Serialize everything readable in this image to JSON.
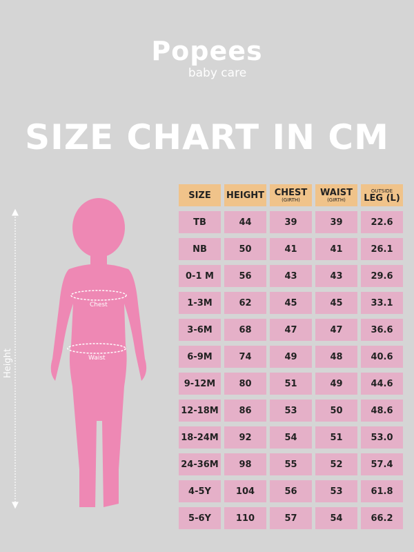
{
  "logo": {
    "brand": "Popees",
    "tagline": "baby care"
  },
  "title": "SIZE CHART IN CM",
  "figure": {
    "height_label": "Height",
    "chest_label": "Chest",
    "waist_label": "Waist"
  },
  "colors": {
    "background": "#d5d5d5",
    "header": "#f0c38a",
    "cell": "#e5b0c8",
    "figure": "#ee88b4"
  },
  "chart_data": {
    "type": "table",
    "headers": [
      {
        "main": "SIZE",
        "sub": ""
      },
      {
        "main": "HEIGHT",
        "sub": ""
      },
      {
        "main": "CHEST",
        "sub": "(GIRTH)"
      },
      {
        "main": "WAIST",
        "sub": "(GIRTH)"
      },
      {
        "main": "LEG (L)",
        "sub": "OUTSIDE"
      }
    ],
    "rows": [
      [
        "TB",
        "44",
        "39",
        "39",
        "22.6"
      ],
      [
        "NB",
        "50",
        "41",
        "41",
        "26.1"
      ],
      [
        "0-1 M",
        "56",
        "43",
        "43",
        "29.6"
      ],
      [
        "1-3M",
        "62",
        "45",
        "45",
        "33.1"
      ],
      [
        "3-6M",
        "68",
        "47",
        "47",
        "36.6"
      ],
      [
        "6-9M",
        "74",
        "49",
        "48",
        "40.6"
      ],
      [
        "9-12M",
        "80",
        "51",
        "49",
        "44.6"
      ],
      [
        "12-18M",
        "86",
        "53",
        "50",
        "48.6"
      ],
      [
        "18-24M",
        "92",
        "54",
        "51",
        "53.0"
      ],
      [
        "24-36M",
        "98",
        "55",
        "52",
        "57.4"
      ],
      [
        "4-5Y",
        "104",
        "56",
        "53",
        "61.8"
      ],
      [
        "5-6Y",
        "110",
        "57",
        "54",
        "66.2"
      ]
    ]
  }
}
